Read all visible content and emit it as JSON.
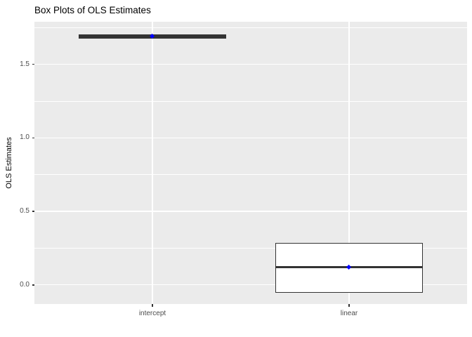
{
  "chart_data": {
    "type": "boxplot",
    "title": "Box Plots of OLS Estimates",
    "xlabel": "",
    "ylabel": "OLS Estimates",
    "categories": [
      "intercept",
      "linear"
    ],
    "series": [
      {
        "category": "intercept",
        "whisker_low": 1.68,
        "q1": 1.68,
        "median": 1.69,
        "q3": 1.7,
        "whisker_high": 1.7,
        "mean": 1.69
      },
      {
        "category": "linear",
        "whisker_low": -0.05,
        "q1": -0.05,
        "median": 0.12,
        "q3": 0.28,
        "whisker_high": 0.28,
        "mean": 0.12
      }
    ],
    "y_tick_labels": [
      "0.0",
      "0.5",
      "1.0",
      "1.5"
    ],
    "y_tick_values": [
      0.0,
      0.5,
      1.0,
      1.5
    ],
    "y_minor_tick_values": [
      0.25,
      0.75,
      1.25,
      1.75
    ],
    "ylim": [
      -0.13,
      1.79
    ],
    "grid": "on",
    "legend": "none",
    "colors": {
      "panel_background": "#EBEBEB",
      "grid": "#FFFFFF",
      "box_border": "#333333",
      "box_fill": "#FFFFFF",
      "mean_point": "#0000FF",
      "axis_text": "#4D4D4D",
      "tick_mark": "#333333",
      "title": "#000000"
    }
  }
}
